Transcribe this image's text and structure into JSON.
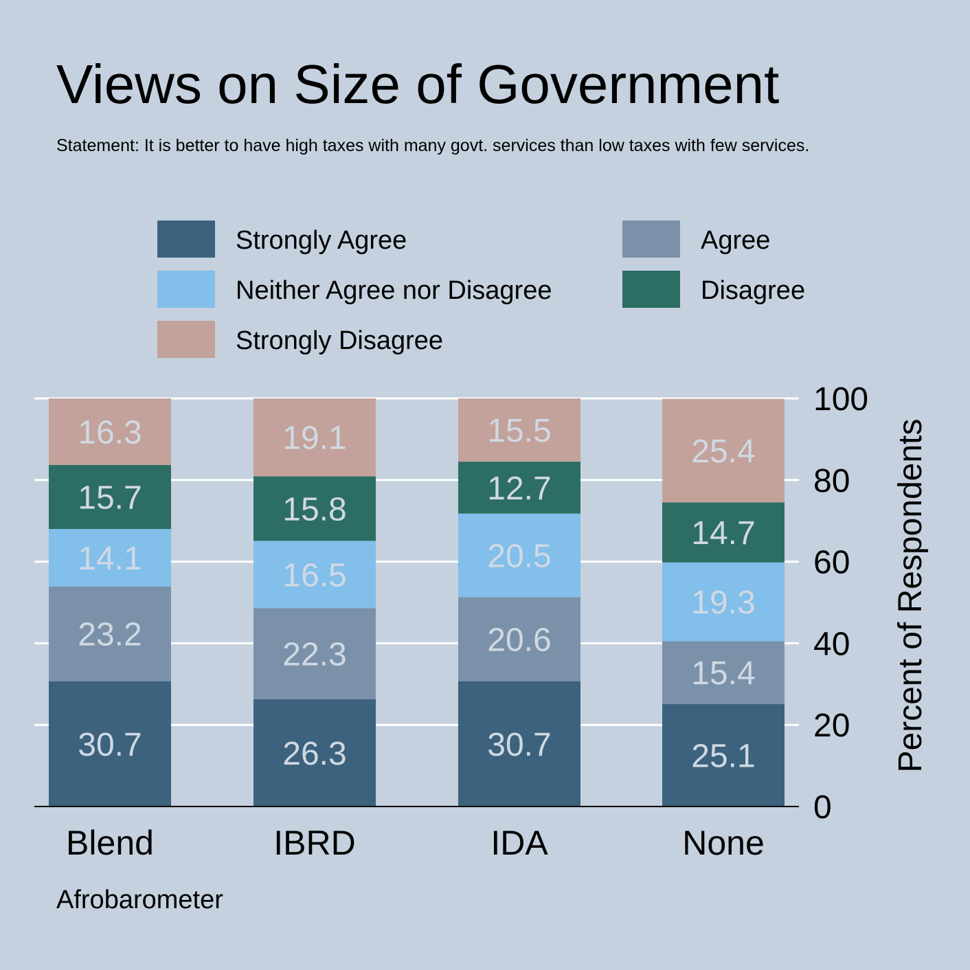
{
  "chart_data": {
    "type": "bar",
    "stacked": true,
    "title": "Views on Size of Government",
    "subtitle": "Statement: It is better to have high taxes with many govt. services than low taxes with few services.",
    "caption": "Afrobarometer",
    "ylabel": "Percent of Respondents",
    "ylim": [
      0,
      100
    ],
    "yticks": [
      0,
      20,
      40,
      60,
      80,
      100
    ],
    "y_axis_side": "right",
    "grid": true,
    "legend_position": "top",
    "categories": [
      "Blend",
      "IBRD",
      "IDA",
      "None"
    ],
    "series": [
      {
        "name": "Strongly Agree",
        "color": "#3c627d",
        "values": [
          30.7,
          26.3,
          30.7,
          25.1
        ]
      },
      {
        "name": "Agree",
        "color": "#7b91a9",
        "values": [
          23.2,
          22.3,
          20.6,
          15.4
        ]
      },
      {
        "name": "Neither Agree nor Disagree",
        "color": "#82bfea",
        "values": [
          14.1,
          16.5,
          20.5,
          19.3
        ]
      },
      {
        "name": "Disagree",
        "color": "#2c6d64",
        "values": [
          15.7,
          15.8,
          12.7,
          14.7
        ]
      },
      {
        "name": "Strongly Disagree",
        "color": "#c2a29a",
        "values": [
          16.3,
          19.1,
          15.5,
          25.4
        ]
      }
    ],
    "colors": {
      "background": "#c5d1de",
      "gridline": "#ffffff",
      "data_label": "#d0d9e3"
    }
  }
}
